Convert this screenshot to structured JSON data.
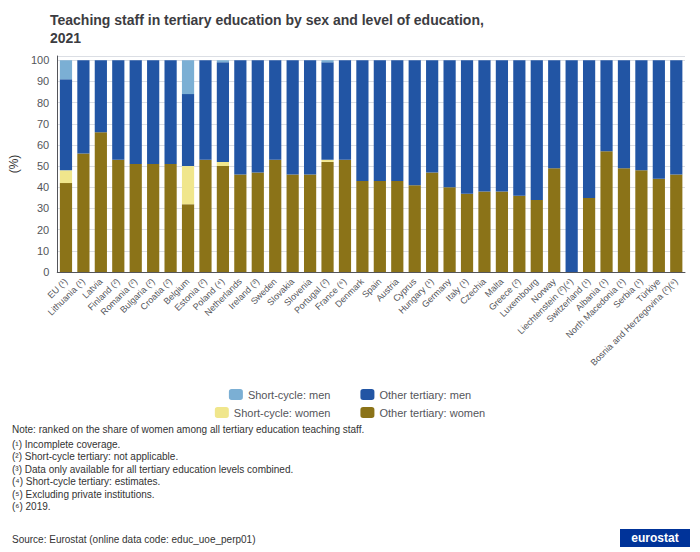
{
  "chart_data": {
    "type": "bar",
    "stacked": true,
    "title": "Teaching staff in tertiary education by sex and level of education,\n2021",
    "ylabel": "(%)",
    "categories": [
      "EU (¹)",
      "Lithuania (¹)",
      "Latvia",
      "Finland (²)",
      "Romania (²)",
      "Bulgaria (²)",
      "Croatia (²)",
      "Belgium",
      "Estonia (²)",
      "Poland (⁴)",
      "Netherlands",
      "Ireland (³)",
      "Sweden",
      "Slovakia",
      "Slovenia",
      "Portugal (²)",
      "France (⁶)",
      "Denmark",
      "Spain",
      "Austria",
      "Cyprus",
      "Hungary (¹)",
      "Germany",
      "Italy (¹)",
      "Czechia",
      "Malta",
      "Greece (²)",
      "Luxembourg",
      "Norway",
      "Liechtenstein (²)(⁴)",
      "Switzerland (¹)",
      "Albania (¹)",
      "North Macedonia (¹)",
      "Serbia (¹)",
      "Türkiye",
      "Bosnia and Herzegovina (²)(⁶)"
    ],
    "series": [
      {
        "name": "Other tertiary: women",
        "color": "#8b7318",
        "values": [
          42,
          56,
          66,
          53,
          51,
          51,
          51,
          32,
          53,
          50,
          46,
          47,
          53,
          46,
          46,
          52,
          53,
          43,
          43,
          43,
          41,
          47,
          40,
          37,
          38,
          38,
          36,
          34,
          49,
          0,
          35,
          57,
          49,
          48,
          44,
          46
        ]
      },
      {
        "name": "Short-cycle: women",
        "color": "#f0e68c",
        "values": [
          6,
          0,
          0,
          0,
          0,
          0,
          0,
          18,
          0,
          2,
          0,
          0,
          0,
          0,
          0,
          1,
          0,
          0,
          0,
          0,
          0,
          0,
          0,
          0,
          0,
          0,
          0,
          0,
          0,
          0,
          0,
          0,
          0,
          0,
          0,
          0
        ]
      },
      {
        "name": "Other tertiary: men",
        "color": "#2255a4",
        "values": [
          43,
          44,
          34,
          47,
          49,
          49,
          49,
          34,
          47,
          47,
          54,
          53,
          47,
          54,
          54,
          46,
          47,
          57,
          57,
          57,
          59,
          53,
          60,
          63,
          62,
          62,
          64,
          66,
          51,
          100,
          65,
          43,
          51,
          52,
          56,
          54
        ]
      },
      {
        "name": "Short-cycle: men",
        "color": "#7bafd4",
        "values": [
          9,
          0,
          0,
          0,
          0,
          0,
          0,
          16,
          0,
          1,
          0,
          0,
          0,
          0,
          0,
          1,
          0,
          0,
          0,
          0,
          0,
          0,
          0,
          0,
          0,
          0,
          0,
          0,
          0,
          0,
          0,
          0,
          0,
          0,
          0,
          0
        ]
      }
    ],
    "ylim": [
      0,
      102
    ],
    "yticks": [
      0,
      10,
      20,
      30,
      40,
      50,
      60,
      70,
      80,
      90,
      100
    ],
    "grid": true,
    "legend": "bottom",
    "note": "Note: ranked on the share of women among all tertiary education teaching staff.",
    "footnotes": [
      "(¹) Incomplete coverage.",
      "(²) Short-cycle tertiary: not applicable.",
      "(³) Data only available for all tertiary education levels combined.",
      "(⁴) Short-cycle tertiary: estimates.",
      "(⁵) Excluding private institutions.",
      "(⁶) 2019."
    ],
    "source": "Source: Eurostat (online data code: educ_uoe_perp01)",
    "annotations": [
      "eurostat"
    ]
  }
}
